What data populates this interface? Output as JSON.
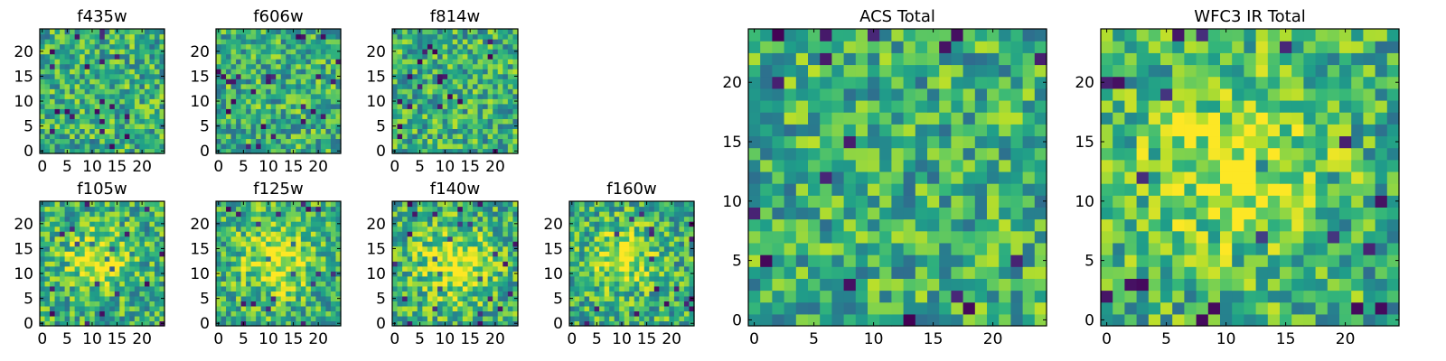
{
  "figure": {
    "description": "Multi-panel pixel-map figure"
  },
  "chart_data": [
    {
      "type": "heatmap",
      "title": "f435w",
      "grid_size": 25,
      "xticks": [
        0,
        5,
        10,
        15,
        20
      ],
      "yticks": [
        0,
        5,
        10,
        15,
        20
      ],
      "xlim": [
        -0.5,
        24.5
      ],
      "ylim": [
        -0.5,
        24.5
      ],
      "colormap": "viridis",
      "seed": 11,
      "blob": null
    },
    {
      "type": "heatmap",
      "title": "f606w",
      "grid_size": 25,
      "xticks": [
        0,
        5,
        10,
        15,
        20
      ],
      "yticks": [
        0,
        5,
        10,
        15,
        20
      ],
      "xlim": [
        -0.5,
        24.5
      ],
      "ylim": [
        -0.5,
        24.5
      ],
      "colormap": "viridis",
      "seed": 23,
      "blob": null
    },
    {
      "type": "heatmap",
      "title": "f814w",
      "grid_size": 25,
      "xticks": [
        0,
        5,
        10,
        15,
        20
      ],
      "yticks": [
        0,
        5,
        10,
        15,
        20
      ],
      "xlim": [
        -0.5,
        24.5
      ],
      "ylim": [
        -0.5,
        24.5
      ],
      "colormap": "viridis",
      "seed": 37,
      "blob": null
    },
    {
      "type": "heatmap",
      "title": "f105w",
      "grid_size": 25,
      "xticks": [
        0,
        5,
        10,
        15,
        20
      ],
      "yticks": [
        0,
        5,
        10,
        15,
        20
      ],
      "xlim": [
        -0.5,
        24.5
      ],
      "ylim": [
        -0.5,
        24.5
      ],
      "colormap": "viridis",
      "seed": 41,
      "blob": [
        11,
        13,
        4
      ]
    },
    {
      "type": "heatmap",
      "title": "f125w",
      "grid_size": 25,
      "xticks": [
        0,
        5,
        10,
        15,
        20
      ],
      "yticks": [
        0,
        5,
        10,
        15,
        20
      ],
      "xlim": [
        -0.5,
        24.5
      ],
      "ylim": [
        -0.5,
        24.5
      ],
      "colormap": "viridis",
      "seed": 53,
      "blob": [
        12,
        13,
        5
      ]
    },
    {
      "type": "heatmap",
      "title": "f140w",
      "grid_size": 25,
      "xticks": [
        0,
        5,
        10,
        15,
        20
      ],
      "yticks": [
        0,
        5,
        10,
        15,
        20
      ],
      "xlim": [
        -0.5,
        24.5
      ],
      "ylim": [
        -0.5,
        24.5
      ],
      "colormap": "viridis",
      "seed": 67,
      "blob": [
        12,
        12,
        5
      ]
    },
    {
      "type": "heatmap",
      "title": "f160w",
      "grid_size": 25,
      "xticks": [
        0,
        5,
        10,
        15,
        20
      ],
      "yticks": [
        0,
        5,
        10,
        15,
        20
      ],
      "xlim": [
        -0.5,
        24.5
      ],
      "ylim": [
        -0.5,
        24.5
      ],
      "colormap": "viridis",
      "seed": 79,
      "blob": [
        10,
        13,
        4
      ]
    },
    {
      "type": "heatmap",
      "title": "ACS Total",
      "grid_size": 25,
      "xticks": [
        0,
        5,
        10,
        15,
        20
      ],
      "yticks": [
        0,
        5,
        10,
        15,
        20
      ],
      "xlim": [
        -0.5,
        24.5
      ],
      "ylim": [
        -0.5,
        24.5
      ],
      "colormap": "viridis",
      "seed": 97,
      "blob": null
    },
    {
      "type": "heatmap",
      "title": "WFC3 IR Total",
      "grid_size": 25,
      "xticks": [
        0,
        5,
        10,
        15,
        20
      ],
      "yticks": [
        0,
        5,
        10,
        15,
        20
      ],
      "xlim": [
        -0.5,
        24.5
      ],
      "ylim": [
        -0.5,
        24.5
      ],
      "colormap": "viridis",
      "seed": 113,
      "blob": [
        11,
        13,
        5
      ]
    }
  ]
}
